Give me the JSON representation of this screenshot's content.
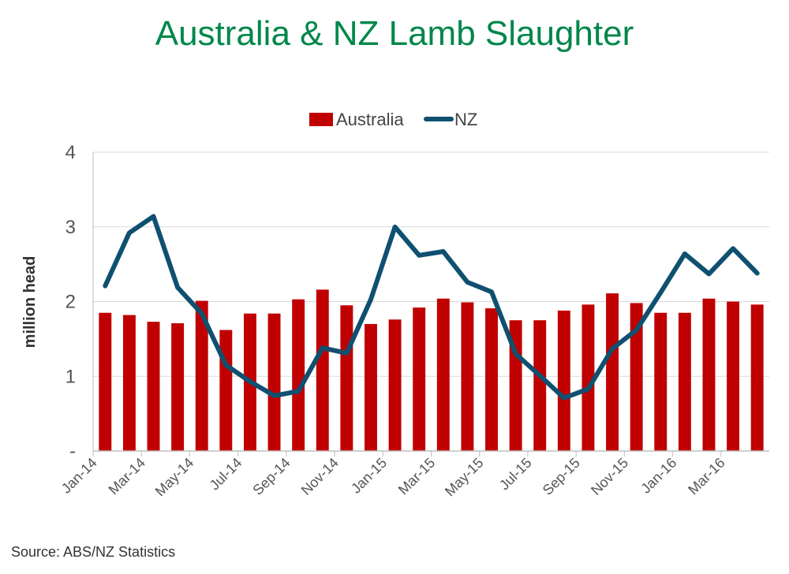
{
  "chart_data": {
    "type": "bar",
    "title": "Australia & NZ Lamb Slaughter",
    "ylabel": "million head",
    "xlabel": "",
    "ylim": [
      0,
      4
    ],
    "yticks": [
      {
        "value": 0,
        "label": "-"
      },
      {
        "value": 1,
        "label": "1"
      },
      {
        "value": 2,
        "label": "2"
      },
      {
        "value": 3,
        "label": "3"
      },
      {
        "value": 4,
        "label": "4"
      }
    ],
    "grid": "horizontal",
    "legend_position": "top",
    "categories": [
      "Jan-14",
      "Feb-14",
      "Mar-14",
      "Apr-14",
      "May-14",
      "Jun-14",
      "Jul-14",
      "Aug-14",
      "Sep-14",
      "Oct-14",
      "Nov-14",
      "Dec-14",
      "Jan-15",
      "Feb-15",
      "Mar-15",
      "Apr-15",
      "May-15",
      "Jun-15",
      "Jul-15",
      "Aug-15",
      "Sep-15",
      "Oct-15",
      "Nov-15",
      "Dec-15",
      "Jan-16",
      "Feb-16",
      "Mar-16",
      "Apr-16"
    ],
    "tick_labels": [
      "Jan-14",
      "Mar-14",
      "May-14",
      "Jul-14",
      "Sep-14",
      "Nov-14",
      "Jan-15",
      "Mar-15",
      "May-15",
      "Jul-15",
      "Sep-15",
      "Nov-15",
      "Jan-16",
      "Mar-16"
    ],
    "series": [
      {
        "name": "Australia",
        "kind": "bar",
        "color": "#C00000",
        "values": [
          1.85,
          1.82,
          1.73,
          1.71,
          2.01,
          1.62,
          1.84,
          1.84,
          2.03,
          2.16,
          1.95,
          1.7,
          1.76,
          1.92,
          2.04,
          1.99,
          1.91,
          1.75,
          1.75,
          1.88,
          1.96,
          2.11,
          1.98,
          1.85,
          1.85,
          2.04,
          2.0,
          1.96
        ]
      },
      {
        "name": "NZ",
        "kind": "line",
        "color": "#0F5070",
        "values": [
          2.21,
          2.92,
          3.14,
          2.19,
          1.84,
          1.15,
          0.93,
          0.74,
          0.8,
          1.38,
          1.31,
          2.03,
          3.0,
          2.62,
          2.67,
          2.26,
          2.13,
          1.3,
          1.01,
          0.71,
          0.83,
          1.37,
          1.62,
          2.12,
          2.64,
          2.37,
          2.71,
          2.38
        ]
      }
    ],
    "source": "Source: ABS/NZ Statistics"
  }
}
